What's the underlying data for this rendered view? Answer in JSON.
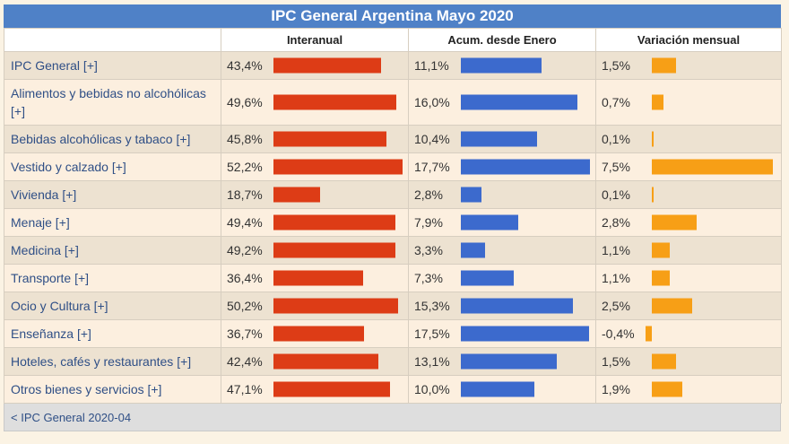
{
  "chart_data": {
    "type": "table",
    "title": "IPC General Argentina Mayo 2020",
    "columns": [
      "",
      "Interanual",
      "Acum. desde Enero",
      "Variación mensual"
    ],
    "rows": [
      {
        "label": "IPC General [+]",
        "interanual": "43,4%",
        "acum": "11,1%",
        "mensual": "1,5%",
        "v": [
          43.4,
          11.1,
          1.5
        ]
      },
      {
        "label": "Alimentos y bebidas no alcohólicas [+]",
        "interanual": "49,6%",
        "acum": "16,0%",
        "mensual": "0,7%",
        "v": [
          49.6,
          16.0,
          0.7
        ]
      },
      {
        "label": "Bebidas alcohólicas y tabaco [+]",
        "interanual": "45,8%",
        "acum": "10,4%",
        "mensual": "0,1%",
        "v": [
          45.8,
          10.4,
          0.1
        ]
      },
      {
        "label": "Vestido y calzado [+]",
        "interanual": "52,2%",
        "acum": "17,7%",
        "mensual": "7,5%",
        "v": [
          52.2,
          17.7,
          7.5
        ]
      },
      {
        "label": "Vivienda [+]",
        "interanual": "18,7%",
        "acum": "2,8%",
        "mensual": "0,1%",
        "v": [
          18.7,
          2.8,
          0.1
        ]
      },
      {
        "label": "Menaje [+]",
        "interanual": "49,4%",
        "acum": "7,9%",
        "mensual": "2,8%",
        "v": [
          49.4,
          7.9,
          2.8
        ]
      },
      {
        "label": "Medicina [+]",
        "interanual": "49,2%",
        "acum": "3,3%",
        "mensual": "1,1%",
        "v": [
          49.2,
          3.3,
          1.1
        ]
      },
      {
        "label": "Transporte [+]",
        "interanual": "36,4%",
        "acum": "7,3%",
        "mensual": "1,1%",
        "v": [
          36.4,
          7.3,
          1.1
        ]
      },
      {
        "label": "Ocio y Cultura [+]",
        "interanual": "50,2%",
        "acum": "15,3%",
        "mensual": "2,5%",
        "v": [
          50.2,
          15.3,
          2.5
        ]
      },
      {
        "label": "Enseñanza [+]",
        "interanual": "36,7%",
        "acum": "17,5%",
        "mensual": "-0,4%",
        "v": [
          36.7,
          17.5,
          -0.4
        ]
      },
      {
        "label": "Hoteles, cafés y restaurantes [+]",
        "interanual": "42,4%",
        "acum": "13,1%",
        "mensual": "1,5%",
        "v": [
          42.4,
          13.1,
          1.5
        ]
      },
      {
        "label": "Otros bienes y servicios [+]",
        "interanual": "47,1%",
        "acum": "10,0%",
        "mensual": "1,9%",
        "v": [
          47.1,
          10.0,
          1.9
        ]
      }
    ],
    "bar_colors": {
      "interanual": "#dd3c16",
      "acum": "#3c6acd",
      "mensual": "#f79f16"
    }
  },
  "footer": {
    "link": "< IPC General 2020-04"
  }
}
